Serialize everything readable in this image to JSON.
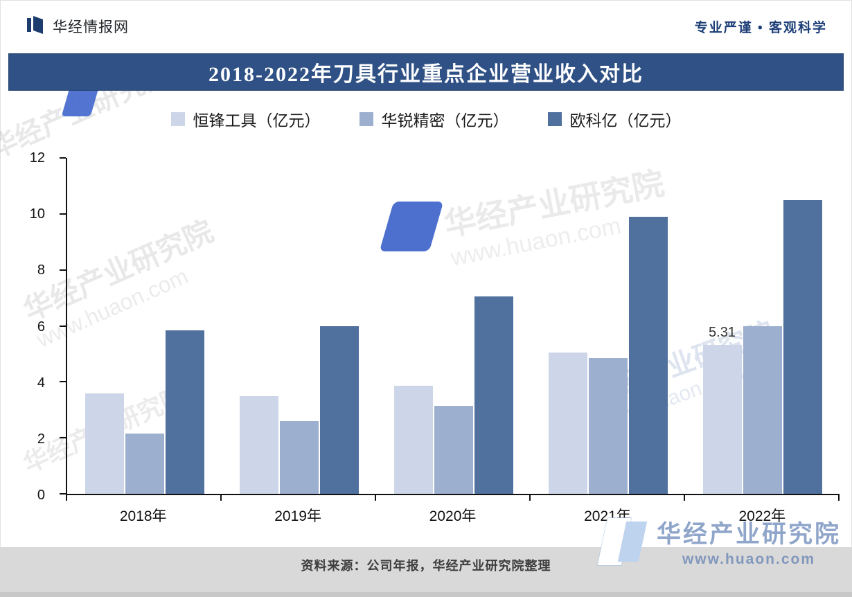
{
  "header": {
    "brand": "华经情报网",
    "slogan": "专业严谨 • 客观科学"
  },
  "title": "2018-2022年刀具行业重点企业营业收入对比",
  "chart_data": {
    "type": "bar",
    "title": "2018-2022年刀具行业重点企业营业收入对比",
    "categories": [
      "2018年",
      "2019年",
      "2020年",
      "2021年",
      "2022年"
    ],
    "series": [
      {
        "name": "恒锋工具（亿元）",
        "color": "#cdd6e8",
        "values": [
          3.6,
          3.5,
          3.85,
          5.05,
          5.31
        ]
      },
      {
        "name": "华锐精密（亿元）",
        "color": "#9cafcf",
        "values": [
          2.15,
          2.6,
          3.15,
          4.85,
          6.0
        ]
      },
      {
        "name": "欧科亿（亿元）",
        "color": "#50709e",
        "values": [
          5.85,
          6.0,
          7.05,
          9.9,
          10.5
        ]
      }
    ],
    "ylim": [
      0,
      12
    ],
    "yticks": [
      0,
      2,
      4,
      6,
      8,
      10,
      12
    ],
    "value_labels": [
      {
        "series": 0,
        "category": 4,
        "text": "5.31"
      }
    ],
    "legend_position": "top",
    "grid": false,
    "xlabel": "",
    "ylabel": ""
  },
  "watermark": {
    "diagonal_text": "华经产业研究院",
    "url_text": "www.huaon.com",
    "brand_text": "华经产业研究院",
    "brand_url": "www.huaon.com"
  },
  "footer": {
    "source": "资料来源：公司年报，华经产业研究院整理"
  }
}
